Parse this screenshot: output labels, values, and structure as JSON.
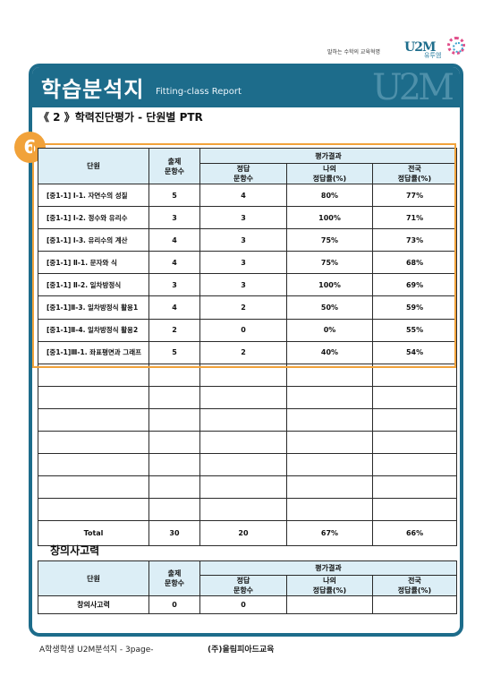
{
  "brand": {
    "tagline": "말하는 수학의 교육혁명",
    "logo": "U2M",
    "logo_sub": "유투엠"
  },
  "banner": {
    "title": "학습분석지",
    "subtitle": "Fitting-class Report",
    "watermark": "U2M"
  },
  "section": {
    "title": "《 2 》학력진단평가 - 단원별 PTR",
    "badge": "6"
  },
  "ptr_table": {
    "headers": {
      "unit": "단원",
      "count": "출제\n문항수",
      "result": "평가결과",
      "correct": "정답\n문항수",
      "my_rate": "나의\n정답률(%)",
      "national_rate": "전국\n정답률(%)"
    },
    "rows": [
      {
        "unit": "[중1-1] Ⅰ-1. 자연수의 성질",
        "count": "5",
        "correct": "4",
        "my_rate": "80%",
        "national_rate": "77%"
      },
      {
        "unit": "[중1-1] Ⅰ-2. 정수와 유리수",
        "count": "3",
        "correct": "3",
        "my_rate": "100%",
        "national_rate": "71%"
      },
      {
        "unit": "[중1-1] Ⅰ-3. 유리수의 계산",
        "count": "4",
        "correct": "3",
        "my_rate": "75%",
        "national_rate": "73%"
      },
      {
        "unit": "[중1-1] Ⅱ-1. 문자와 식",
        "count": "4",
        "correct": "3",
        "my_rate": "75%",
        "national_rate": "68%"
      },
      {
        "unit": "[중1-1] Ⅱ-2. 일차방정식",
        "count": "3",
        "correct": "3",
        "my_rate": "100%",
        "national_rate": "69%"
      },
      {
        "unit": "[중1-1]Ⅱ-3. 일차방정식 활용1",
        "count": "4",
        "correct": "2",
        "my_rate": "50%",
        "national_rate": "59%"
      },
      {
        "unit": "[중1-1]Ⅱ-4. 일차방정식 활용2",
        "count": "2",
        "correct": "0",
        "my_rate": "0%",
        "national_rate": "55%"
      },
      {
        "unit": "[중1-1]Ⅲ-1. 좌표평면과 그래프",
        "count": "5",
        "correct": "2",
        "my_rate": "40%",
        "national_rate": "54%"
      }
    ],
    "empty_rows": 7,
    "total": {
      "label": "Total",
      "count": "30",
      "correct": "20",
      "my_rate": "67%",
      "national_rate": "66%"
    }
  },
  "creative": {
    "title": "창의사고력",
    "headers": {
      "unit": "단원",
      "count": "출제\n문항수",
      "result": "평가결과",
      "correct": "정답\n문항수",
      "my_rate": "나의\n정답률(%)",
      "national_rate": "전국\n정답률(%)"
    },
    "row": {
      "unit": "창의사고력",
      "count": "0",
      "correct": "0",
      "my_rate": "",
      "national_rate": ""
    }
  },
  "footer": {
    "left": "A학생학생 U2M분석지 - 3page-",
    "right": "(주)올림피아드교육"
  },
  "colors": {
    "brand_blue": "#1d6c8b",
    "header_fill": "#dceef6",
    "highlight_orange": "#f1a23a"
  }
}
